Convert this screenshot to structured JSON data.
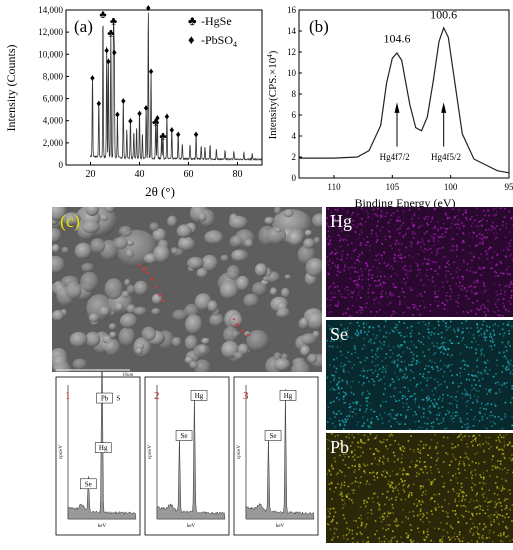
{
  "panel_a": {
    "label": "(a)",
    "ylabel": "Intensity (Counts)",
    "xlabel": "2θ (°)",
    "legend": [
      {
        "symbol": "♣",
        "text": "-HgSe"
      },
      {
        "symbol": "♦",
        "text": "-PbSO"
      },
      {
        "sub": "4"
      }
    ],
    "yticks": [
      "0",
      "2,000",
      "4,000",
      "6,000",
      "8,000",
      "10,000",
      "12,000",
      "14,000"
    ],
    "xticks": [
      "20",
      "40",
      "60",
      "80"
    ]
  },
  "panel_b": {
    "label": "(b)",
    "ylabel": "Intensity(CPS.×10",
    "ylabel_sup": "4",
    "ylabel_end": ")",
    "xlabel": "Binding Energy (eV)",
    "yticks": [
      "0",
      "2",
      "4",
      "6",
      "8",
      "10",
      "12",
      "14",
      "16"
    ],
    "xticks": [
      "110",
      "105",
      "100",
      "95"
    ],
    "peak1_value": "104.6",
    "peak2_value": "100.6",
    "peak1_name": "Hg4f7/2",
    "peak2_name": "Hg4f5/2"
  },
  "panel_c": {
    "label": "(c)",
    "scale": "10um",
    "spectra": [
      {
        "num": "1",
        "labels": [
          "Pb",
          "S",
          "Hg",
          "Se"
        ],
        "ylabel": "cps/eV",
        "xlabel": "keV"
      },
      {
        "num": "2",
        "labels": [
          "Hg",
          "Se"
        ],
        "ylabel": "cps/eV",
        "xlabel": "keV"
      },
      {
        "num": "3",
        "labels": [
          "Hg",
          "Se"
        ],
        "ylabel": "cps/eV",
        "xlabel": "keV"
      }
    ],
    "maps": [
      {
        "element": "Hg",
        "color": "#b020c0"
      },
      {
        "element": "Se",
        "color": "#20b8c8"
      },
      {
        "element": "Pb",
        "color": "#c8c020"
      }
    ]
  },
  "chart_data": [
    {
      "type": "line",
      "xlabel": "2θ (°)",
      "ylabel": "Intensity (Counts)",
      "xlim": [
        10,
        90
      ],
      "ylim": [
        0,
        14000
      ],
      "series": [
        {
          "name": "-HgSe",
          "peaks_x": [
            25.1,
            28.3,
            29.4,
            46.6,
            49.6
          ],
          "peaks_y": [
            13200,
            11500,
            12600,
            3500,
            2200
          ]
        },
        {
          "name": "-PbSO4",
          "peaks_x": [
            20.8,
            23.4,
            26.6,
            27.3,
            29.7,
            31.0,
            33.4,
            36.3,
            40.0,
            42.7,
            43.6,
            44.7,
            47.3,
            51.2,
            53.2,
            55.8,
            63.1
          ],
          "peaks_y": [
            7500,
            5200,
            10000,
            9000,
            9800,
            4200,
            5400,
            3600,
            4300,
            4800,
            13800,
            8100,
            3900,
            4000,
            2800,
            2400,
            2400
          ]
        }
      ]
    },
    {
      "type": "line",
      "xlabel": "Binding Energy (eV)",
      "ylabel": "Intensity(CPS.×10^4)",
      "xlim": [
        113,
        95
      ],
      "ylim": [
        0,
        16
      ],
      "series": [
        {
          "x": [
            113,
            110,
            108,
            107,
            106,
            105.5,
            105,
            104.6,
            104.2,
            103.5,
            103,
            102.5,
            102,
            101.5,
            101,
            100.6,
            100.2,
            99.5,
            99,
            98,
            96,
            95
          ],
          "y": [
            1.9,
            1.9,
            2.0,
            2.6,
            5.0,
            9.0,
            11.4,
            11.9,
            11.2,
            7.0,
            4.8,
            4.5,
            5.8,
            9.2,
            13.0,
            14.3,
            13.4,
            8.0,
            4.2,
            1.8,
            0.7,
            0.5
          ]
        }
      ],
      "annotations": [
        {
          "x": 104.6,
          "text": "104.6"
        },
        {
          "x": 100.6,
          "text": "100.6"
        },
        {
          "x": 104.8,
          "text": "Hg4f7/2"
        },
        {
          "x": 100.5,
          "text": "Hg4f5/2"
        }
      ]
    }
  ]
}
